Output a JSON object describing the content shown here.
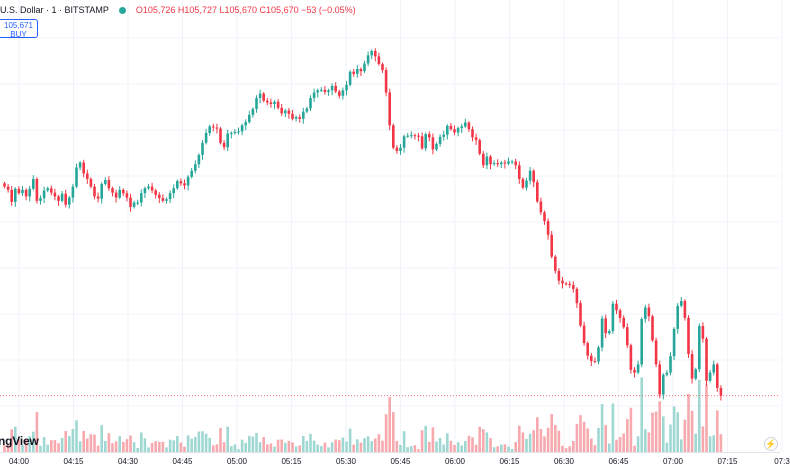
{
  "legend": {
    "symbol": "U.S. Dollar · 1 · BITSTAMP",
    "open": "O105,726",
    "high": "H105,727",
    "low": "L105,670",
    "close": "C105,670",
    "change": "−53 (−0.05%)"
  },
  "trade": {
    "price": "105,671",
    "action": "BUY"
  },
  "watermark": "ngView",
  "replay_icon": "lightning-icon",
  "colors": {
    "up": "#26a69a",
    "down": "#f23645",
    "up_volume": "#9fd8d2",
    "down_volume": "#f7a9ae",
    "grid": "#f0f3fa",
    "price_line": "#f23645"
  },
  "chart_data": {
    "type": "candlestick",
    "interval": "1 minute",
    "time_labels": [
      "04:00",
      "04:15",
      "04:30",
      "04:45",
      "05:00",
      "05:15",
      "05:30",
      "05:45",
      "06:00",
      "06:15",
      "06:30",
      "06:45",
      "07:00",
      "07:15",
      "07:3"
    ],
    "last_price": 105670,
    "candles_close": [
      106052,
      106046,
      106024,
      106048,
      106040,
      106046,
      106034,
      106048,
      106066,
      106026,
      106031,
      106045,
      106049,
      106041,
      106034,
      106026,
      106039,
      106019,
      106032,
      106052,
      106087,
      106096,
      106076,
      106066,
      106052,
      106034,
      106030,
      106057,
      106064,
      106049,
      106041,
      106032,
      106046,
      106040,
      106032,
      106015,
      106023,
      106023,
      106040,
      106049,
      106052,
      106045,
      106037,
      106031,
      106026,
      106029,
      106040,
      106049,
      106062,
      106058,
      106054,
      106070,
      106081,
      106093,
      106110,
      106132,
      106150,
      106162,
      106160,
      106158,
      106132,
      106124,
      106149,
      106150,
      106152,
      106153,
      106164,
      106170,
      106183,
      106194,
      106214,
      106222,
      106209,
      106206,
      106203,
      106207,
      106196,
      106186,
      106191,
      106185,
      106176,
      106179,
      106176,
      106189,
      106195,
      106214,
      106224,
      106228,
      106229,
      106225,
      106228,
      106236,
      106226,
      106218,
      106228,
      106238,
      106262,
      106258,
      106267,
      106263,
      106277,
      106292,
      106300,
      106290,
      106276,
      106265,
      106224,
      106164,
      106123,
      106117,
      106123,
      106144,
      106145,
      106146,
      106145,
      106144,
      106122,
      106148,
      106142,
      106120,
      106130,
      106143,
      106147,
      106163,
      106157,
      106151,
      106159,
      106162,
      106169,
      106157,
      106142,
      106137,
      106112,
      106091,
      106107,
      106093,
      106095,
      106093,
      106096,
      106094,
      106098,
      106098,
      106091,
      106066,
      106050,
      106063,
      106081,
      106060,
      106025,
      106005,
      105989,
      105964,
      105924,
      105898,
      105880,
      105875,
      105874,
      105872,
      105865,
      105839,
      105798,
      105766,
      105743,
      105733,
      105732,
      105758,
      105811,
      105784,
      105788,
      105838,
      105826,
      105812,
      105795,
      105762,
      105717,
      105712,
      105727,
      105810,
      105831,
      105815,
      105771,
      105727,
      105672,
      105708,
      105712,
      105742,
      105792,
      105834,
      105843,
      105812,
      105746,
      105701,
      105718,
      105797,
      105774,
      105697,
      105712,
      105727,
      105684,
      105670
    ]
  }
}
